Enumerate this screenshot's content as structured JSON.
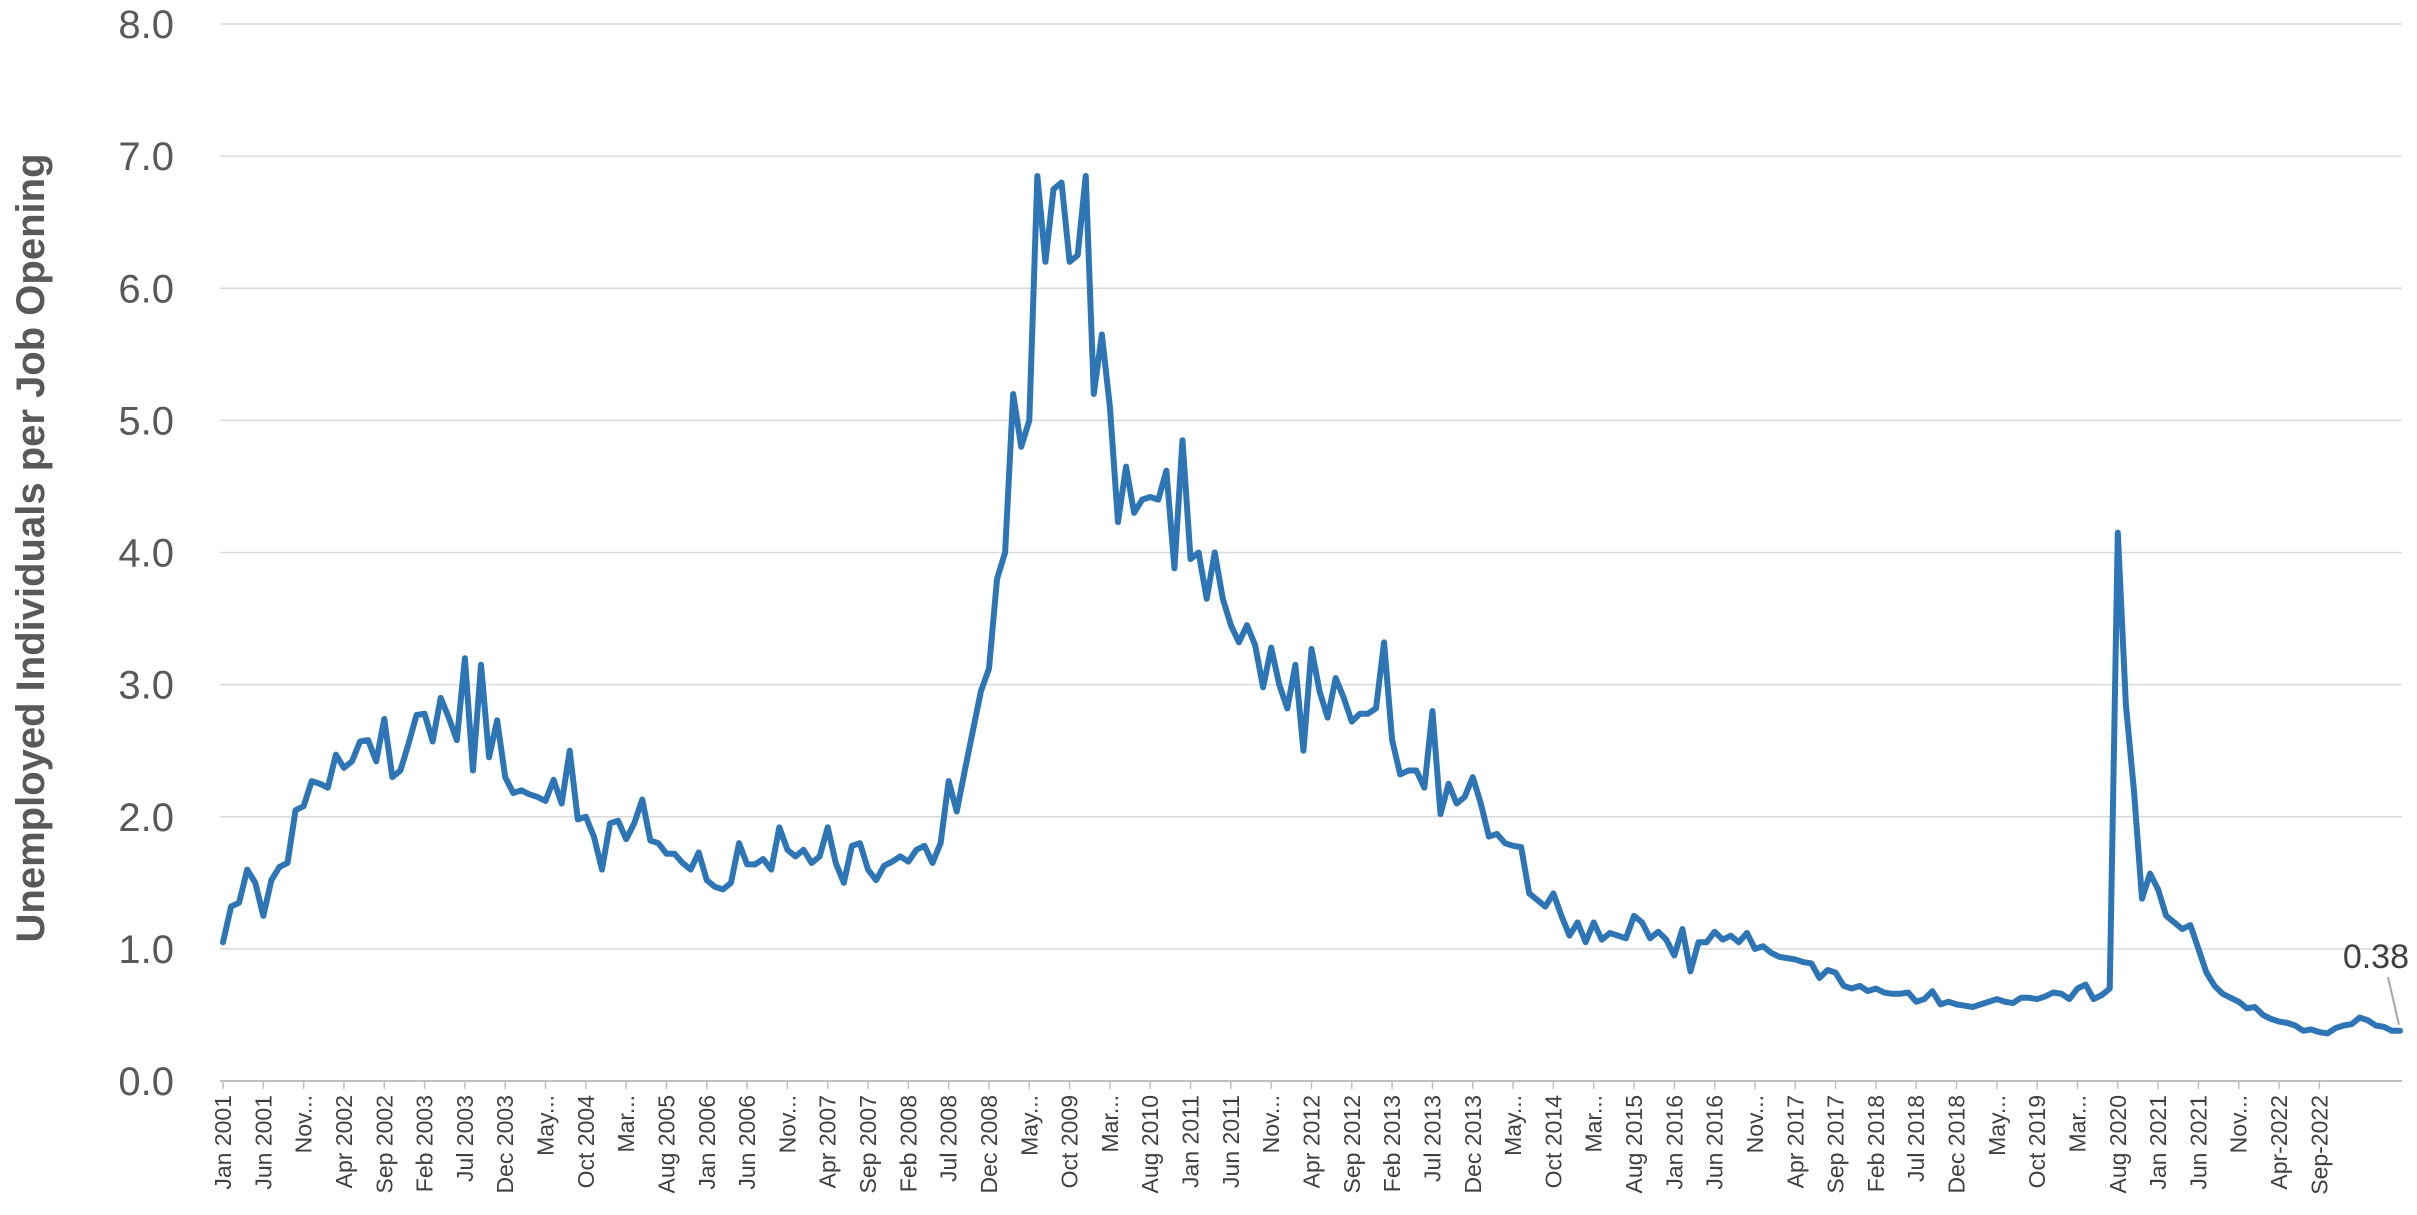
{
  "chart_data": {
    "type": "line",
    "title": "",
    "xlabel": "",
    "ylabel": "Unemployed Individuals per Job Opening",
    "ylim": [
      0,
      8
    ],
    "yticks": [
      "0.0",
      "1.0",
      "2.0",
      "3.0",
      "4.0",
      "5.0",
      "6.0",
      "7.0",
      "8.0"
    ],
    "grid": "horizontal",
    "legend": "none",
    "colors": {
      "line": "#2E75B6",
      "grid": "#D9D9D9",
      "axis": "#BFBFBF",
      "tick_text": "#595959"
    },
    "x_tick_labels": [
      "Jan 2001",
      "Jun 2001",
      "Nov...",
      "Apr 2002",
      "Sep 2002",
      "Feb 2003",
      "Jul 2003",
      "Dec 2003",
      "May...",
      "Oct 2004",
      "Mar...",
      "Aug 2005",
      "Jan 2006",
      "Jun 2006",
      "Nov...",
      "Apr 2007",
      "Sep 2007",
      "Feb 2008",
      "Jul 2008",
      "Dec 2008",
      "May...",
      "Oct 2009",
      "Mar...",
      "Aug 2010",
      "Jan 2011",
      "Jun 2011",
      "Nov...",
      "Apr 2012",
      "Sep 2012",
      "Feb 2013",
      "Jul 2013",
      "Dec 2013",
      "May...",
      "Oct 2014",
      "Mar...",
      "Aug 2015",
      "Jan 2016",
      "Jun 2016",
      "Nov...",
      "Apr 2017",
      "Sep 2017",
      "Feb 2018",
      "Jul 2018",
      "Dec 2018",
      "May...",
      "Oct 2019",
      "Mar...",
      "Aug 2020",
      "Jan 2021",
      "Jun 2021",
      "Nov...",
      "Apr-2022",
      "Sep-2022"
    ],
    "end_label": "0.38",
    "series": [
      {
        "name": "",
        "start": "Jan 2001",
        "frequency": "monthly",
        "values": [
          1.05,
          1.32,
          1.35,
          1.6,
          1.5,
          1.25,
          1.52,
          1.62,
          1.65,
          2.05,
          2.08,
          2.27,
          2.25,
          2.22,
          2.47,
          2.37,
          2.42,
          2.57,
          2.58,
          2.42,
          2.74,
          2.3,
          2.35,
          2.55,
          2.77,
          2.78,
          2.57,
          2.9,
          2.75,
          2.58,
          3.2,
          2.35,
          3.15,
          2.45,
          2.73,
          2.3,
          2.18,
          2.2,
          2.17,
          2.15,
          2.12,
          2.28,
          2.1,
          2.5,
          1.98,
          2.0,
          1.85,
          1.6,
          1.95,
          1.97,
          1.83,
          1.95,
          2.13,
          1.82,
          1.8,
          1.72,
          1.72,
          1.65,
          1.6,
          1.73,
          1.52,
          1.47,
          1.45,
          1.5,
          1.8,
          1.64,
          1.64,
          1.68,
          1.6,
          1.92,
          1.75,
          1.7,
          1.75,
          1.65,
          1.7,
          1.92,
          1.65,
          1.5,
          1.78,
          1.8,
          1.6,
          1.52,
          1.63,
          1.66,
          1.7,
          1.66,
          1.75,
          1.78,
          1.65,
          1.8,
          2.27,
          2.04,
          2.35,
          2.65,
          2.95,
          3.12,
          3.8,
          4.0,
          5.2,
          4.8,
          5.0,
          6.85,
          6.2,
          6.75,
          6.8,
          6.2,
          6.25,
          6.85,
          5.2,
          5.65,
          5.1,
          4.23,
          4.65,
          4.3,
          4.4,
          4.42,
          4.4,
          4.62,
          3.88,
          4.85,
          3.95,
          4.0,
          3.65,
          4.0,
          3.65,
          3.45,
          3.32,
          3.45,
          3.3,
          2.98,
          3.28,
          3.0,
          2.82,
          3.15,
          2.5,
          3.27,
          2.95,
          2.75,
          3.05,
          2.9,
          2.72,
          2.78,
          2.78,
          2.82,
          3.32,
          2.58,
          2.32,
          2.35,
          2.35,
          2.22,
          2.8,
          2.02,
          2.25,
          2.1,
          2.15,
          2.3,
          2.1,
          1.85,
          1.87,
          1.8,
          1.78,
          1.77,
          1.42,
          1.37,
          1.32,
          1.42,
          1.25,
          1.1,
          1.2,
          1.05,
          1.2,
          1.07,
          1.12,
          1.1,
          1.08,
          1.25,
          1.2,
          1.08,
          1.13,
          1.07,
          0.95,
          1.15,
          0.83,
          1.05,
          1.05,
          1.13,
          1.07,
          1.1,
          1.05,
          1.12,
          1.0,
          1.02,
          0.97,
          0.94,
          0.93,
          0.92,
          0.9,
          0.89,
          0.78,
          0.84,
          0.82,
          0.72,
          0.7,
          0.72,
          0.68,
          0.7,
          0.67,
          0.66,
          0.66,
          0.67,
          0.6,
          0.62,
          0.68,
          0.58,
          0.6,
          0.58,
          0.57,
          0.56,
          0.58,
          0.6,
          0.62,
          0.6,
          0.59,
          0.63,
          0.63,
          0.62,
          0.64,
          0.67,
          0.66,
          0.62,
          0.7,
          0.73,
          0.62,
          0.65,
          0.7,
          4.15,
          2.85,
          2.2,
          1.38,
          1.57,
          1.45,
          1.25,
          1.2,
          1.15,
          1.18,
          1.0,
          0.82,
          0.72,
          0.66,
          0.63,
          0.6,
          0.55,
          0.56,
          0.5,
          0.47,
          0.45,
          0.44,
          0.42,
          0.38,
          0.39,
          0.37,
          0.36,
          0.4,
          0.42,
          0.43,
          0.48,
          0.46,
          0.42,
          0.41,
          0.38,
          0.38
        ]
      }
    ]
  }
}
